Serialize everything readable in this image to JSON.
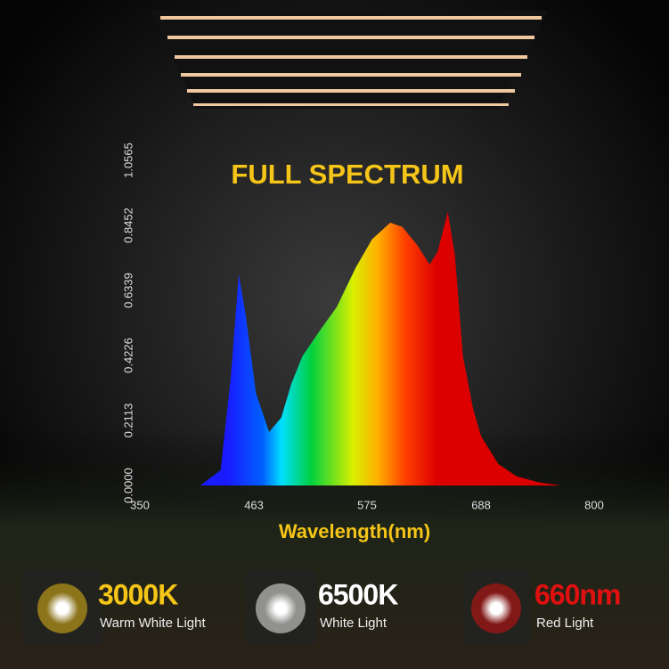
{
  "chart_data": {
    "type": "area",
    "title": "FULL SPECTRUM",
    "x_label": "Wavelength(nm)",
    "x": [
      410,
      430,
      440,
      448,
      455,
      465,
      478,
      490,
      500,
      511,
      529,
      545,
      564,
      580,
      598,
      610,
      625,
      637,
      645,
      655,
      662,
      670,
      680,
      688,
      705,
      723,
      745,
      767
    ],
    "values": [
      0,
      0.05,
      0.35,
      0.686,
      0.55,
      0.3,
      0.174,
      0.22,
      0.33,
      0.42,
      0.507,
      0.58,
      0.709,
      0.8,
      0.854,
      0.84,
      0.78,
      0.718,
      0.76,
      0.889,
      0.75,
      0.42,
      0.25,
      0.16,
      0.07,
      0.03,
      0.01,
      0
    ],
    "xlim": [
      350,
      800
    ],
    "xticks": [
      350,
      463,
      575,
      688,
      800
    ],
    "ylim": [
      0,
      1.0565
    ],
    "yticks": [
      {
        "value": 0,
        "label": "0.0000"
      },
      0.2113,
      0.4226,
      0.6339,
      0.8452,
      1.0565
    ],
    "grid": false
  },
  "lights": [
    {
      "name": "3000K",
      "description": "Warm White Light",
      "color": "#f5c518"
    },
    {
      "name": "6500K",
      "description": "White Light",
      "color": "#ffffff"
    },
    {
      "name": "660nm",
      "description": "Red Light",
      "color": "#e01010"
    }
  ]
}
